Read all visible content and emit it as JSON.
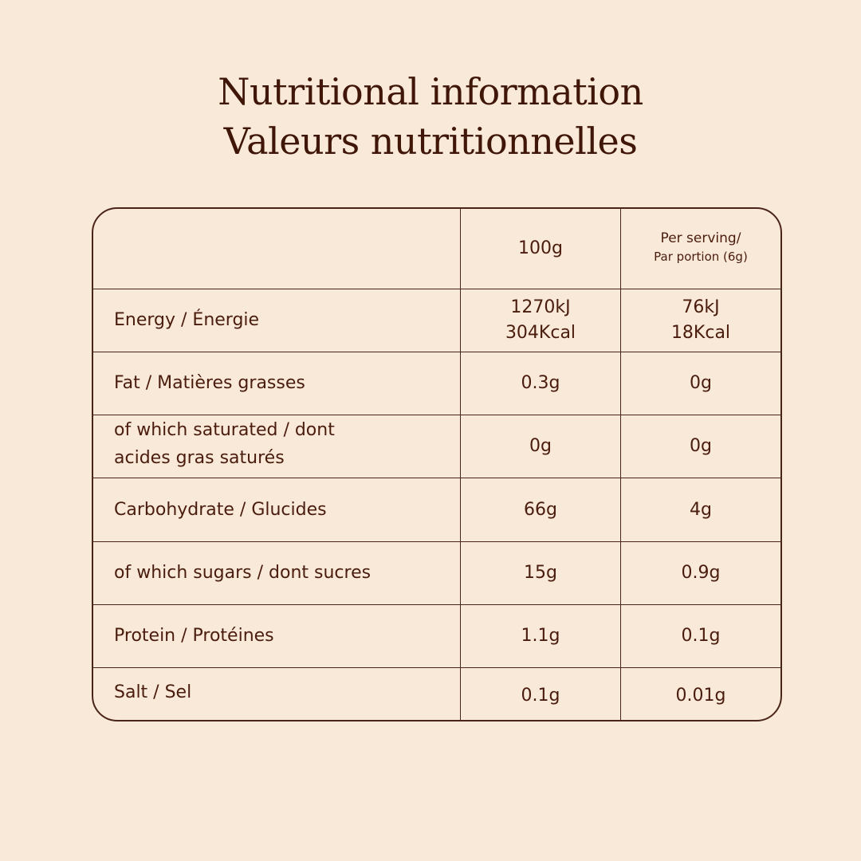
{
  "title": {
    "line1": "Nutritional information",
    "line2": "Valeurs nutritionnelles"
  },
  "table": {
    "header": {
      "col1": "100g",
      "col2_line1": "Per serving/",
      "col2_line2": "Par portion (6g)"
    },
    "energy": {
      "label": "Energy / Énergie",
      "per100_kj": "1270kJ",
      "per100_kcal": "304Kcal",
      "serving_kj": "76kJ",
      "serving_kcal": "18Kcal"
    },
    "rows": [
      {
        "label": "Fat / Matières grasses",
        "per100": "0.3g",
        "serving": "0g"
      },
      {
        "label_line1": "of which saturated / dont",
        "label_line2": "acides gras saturés",
        "per100": "0g",
        "serving": "0g"
      },
      {
        "label": "Carbohydrate / Glucides",
        "per100": "66g",
        "serving": "4g"
      },
      {
        "label": "of which sugars / dont sucres",
        "per100": "15g",
        "serving": "0.9g"
      },
      {
        "label": "Protein / Protéines",
        "per100": "1.1g",
        "serving": "0.1g"
      },
      {
        "label": "Salt / Sel",
        "per100": "0.1g",
        "serving": "0.01g"
      }
    ]
  }
}
